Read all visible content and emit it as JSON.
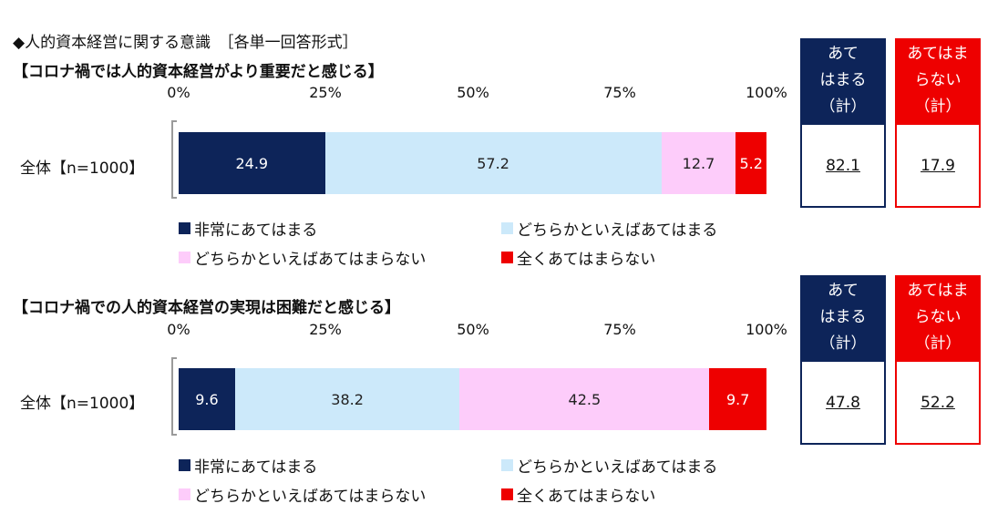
{
  "heading": "◆人的資本経営に関する意識　［各単一回答形式］",
  "colors": {
    "strong_yes": "#0d2459",
    "yes": "#cce9fa",
    "no": "#fdccfa",
    "strong_no": "#ee0000"
  },
  "legend": {
    "strong_yes": "非常にあてはまる",
    "yes": "どちらかといえばあてはまる",
    "no": "どちらかといえばあてはまらない",
    "strong_no": "全くあてはまらない"
  },
  "summary_headers": {
    "apply": [
      "あて",
      "はまる",
      "（計）"
    ],
    "not_apply": [
      "あてはま",
      "らない",
      "（計）"
    ]
  },
  "chart_data": [
    {
      "type": "bar",
      "orientation": "horizontal-stacked-100",
      "title": "【コロナ禍では人的資本経営がより重要だと感じる】",
      "x_ticks": [
        "0%",
        "25%",
        "50%",
        "75%",
        "100%"
      ],
      "xlim": [
        0,
        100
      ],
      "categories": [
        "全体【n=1000】"
      ],
      "series": [
        {
          "name": "非常にあてはまる",
          "values": [
            24.9
          ],
          "labels": [
            "24.9"
          ]
        },
        {
          "name": "どちらかといえばあてはまる",
          "values": [
            57.2
          ],
          "labels": [
            "57.2"
          ]
        },
        {
          "name": "どちらかといえばあてはまらない",
          "values": [
            12.7
          ],
          "labels": [
            "12.7"
          ]
        },
        {
          "name": "全くあてはまらない",
          "values": [
            5.2
          ],
          "labels": [
            "5.2"
          ]
        }
      ],
      "totals": {
        "apply": "82.1",
        "not_apply": "17.9"
      }
    },
    {
      "type": "bar",
      "orientation": "horizontal-stacked-100",
      "title": "【コロナ禍での人的資本経営の実現は困難だと感じる】",
      "x_ticks": [
        "0%",
        "25%",
        "50%",
        "75%",
        "100%"
      ],
      "xlim": [
        0,
        100
      ],
      "categories": [
        "全体【n=1000】"
      ],
      "series": [
        {
          "name": "非常にあてはまる",
          "values": [
            9.6
          ],
          "labels": [
            "9.6"
          ]
        },
        {
          "name": "どちらかといえばあてはまる",
          "values": [
            38.2
          ],
          "labels": [
            "38.2"
          ]
        },
        {
          "name": "どちらかといえばあてはまらない",
          "values": [
            42.5
          ],
          "labels": [
            "42.5"
          ]
        },
        {
          "name": "全くあてはまらない",
          "values": [
            9.7
          ],
          "labels": [
            "9.7"
          ]
        }
      ],
      "totals": {
        "apply": "47.8",
        "not_apply": "52.2"
      }
    }
  ]
}
